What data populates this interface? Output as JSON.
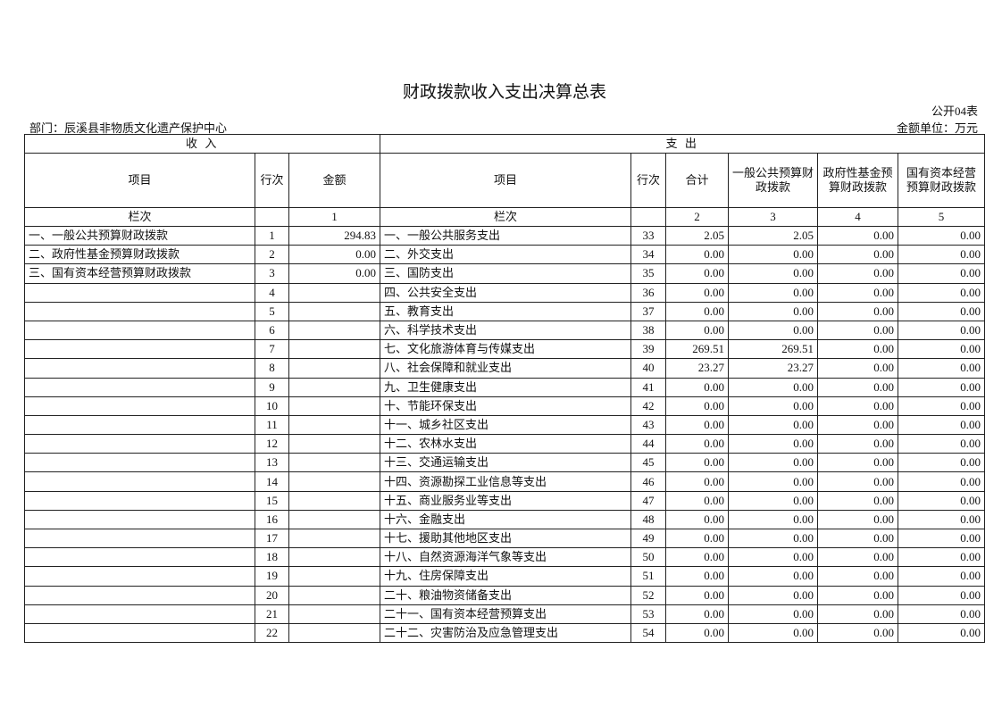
{
  "header": {
    "title": "财政拨款收入支出决算总表",
    "code": "公开04表",
    "department": "部门：辰溪县非物质文化遗产保护中心",
    "unit": "金额单位：万元"
  },
  "table": {
    "sections": [
      "收 入",
      "支 出"
    ],
    "columns": [
      "项目",
      "行次",
      "金额",
      "项目",
      "行次",
      "合计",
      "一般公共预算财政拨款",
      "政府性基金预算财政拨款",
      "国有资本经营预算财政拨款"
    ],
    "index_row": [
      "栏次",
      null,
      "1",
      "栏次",
      null,
      "2",
      "3",
      "4",
      "5"
    ],
    "rows": [
      [
        "一、一般公共预算财政拨款",
        "1",
        "294.83",
        "一、一般公共服务支出",
        "33",
        "2.05",
        "2.05",
        "0.00",
        "0.00"
      ],
      [
        "二、政府性基金预算财政拨款",
        "2",
        "0.00",
        "二、外交支出",
        "34",
        "0.00",
        "0.00",
        "0.00",
        "0.00"
      ],
      [
        "三、国有资本经营预算财政拨款",
        "3",
        "0.00",
        "三、国防支出",
        "35",
        "0.00",
        "0.00",
        "0.00",
        "0.00"
      ],
      [
        null,
        "4",
        null,
        "四、公共安全支出",
        "36",
        "0.00",
        "0.00",
        "0.00",
        "0.00"
      ],
      [
        null,
        "5",
        null,
        "五、教育支出",
        "37",
        "0.00",
        "0.00",
        "0.00",
        "0.00"
      ],
      [
        null,
        "6",
        null,
        "六、科学技术支出",
        "38",
        "0.00",
        "0.00",
        "0.00",
        "0.00"
      ],
      [
        null,
        "7",
        null,
        "七、文化旅游体育与传媒支出",
        "39",
        "269.51",
        "269.51",
        "0.00",
        "0.00"
      ],
      [
        null,
        "8",
        null,
        "八、社会保障和就业支出",
        "40",
        "23.27",
        "23.27",
        "0.00",
        "0.00"
      ],
      [
        null,
        "9",
        null,
        "九、卫生健康支出",
        "41",
        "0.00",
        "0.00",
        "0.00",
        "0.00"
      ],
      [
        null,
        "10",
        null,
        "十、节能环保支出",
        "42",
        "0.00",
        "0.00",
        "0.00",
        "0.00"
      ],
      [
        null,
        "11",
        null,
        "十一、城乡社区支出",
        "43",
        "0.00",
        "0.00",
        "0.00",
        "0.00"
      ],
      [
        null,
        "12",
        null,
        "十二、农林水支出",
        "44",
        "0.00",
        "0.00",
        "0.00",
        "0.00"
      ],
      [
        null,
        "13",
        null,
        "十三、交通运输支出",
        "45",
        "0.00",
        "0.00",
        "0.00",
        "0.00"
      ],
      [
        null,
        "14",
        null,
        "十四、资源勘探工业信息等支出",
        "46",
        "0.00",
        "0.00",
        "0.00",
        "0.00"
      ],
      [
        null,
        "15",
        null,
        "十五、商业服务业等支出",
        "47",
        "0.00",
        "0.00",
        "0.00",
        "0.00"
      ],
      [
        null,
        "16",
        null,
        "十六、金融支出",
        "48",
        "0.00",
        "0.00",
        "0.00",
        "0.00"
      ],
      [
        null,
        "17",
        null,
        "十七、援助其他地区支出",
        "49",
        "0.00",
        "0.00",
        "0.00",
        "0.00"
      ],
      [
        null,
        "18",
        null,
        "十八、自然资源海洋气象等支出",
        "50",
        "0.00",
        "0.00",
        "0.00",
        "0.00"
      ],
      [
        null,
        "19",
        null,
        "十九、住房保障支出",
        "51",
        "0.00",
        "0.00",
        "0.00",
        "0.00"
      ],
      [
        null,
        "20",
        null,
        "二十、粮油物资储备支出",
        "52",
        "0.00",
        "0.00",
        "0.00",
        "0.00"
      ],
      [
        null,
        "21",
        null,
        "二十一、国有资本经营预算支出",
        "53",
        "0.00",
        "0.00",
        "0.00",
        "0.00"
      ],
      [
        null,
        "22",
        null,
        "二十二、灾害防治及应急管理支出",
        "54",
        "0.00",
        "0.00",
        "0.00",
        "0.00"
      ]
    ]
  }
}
